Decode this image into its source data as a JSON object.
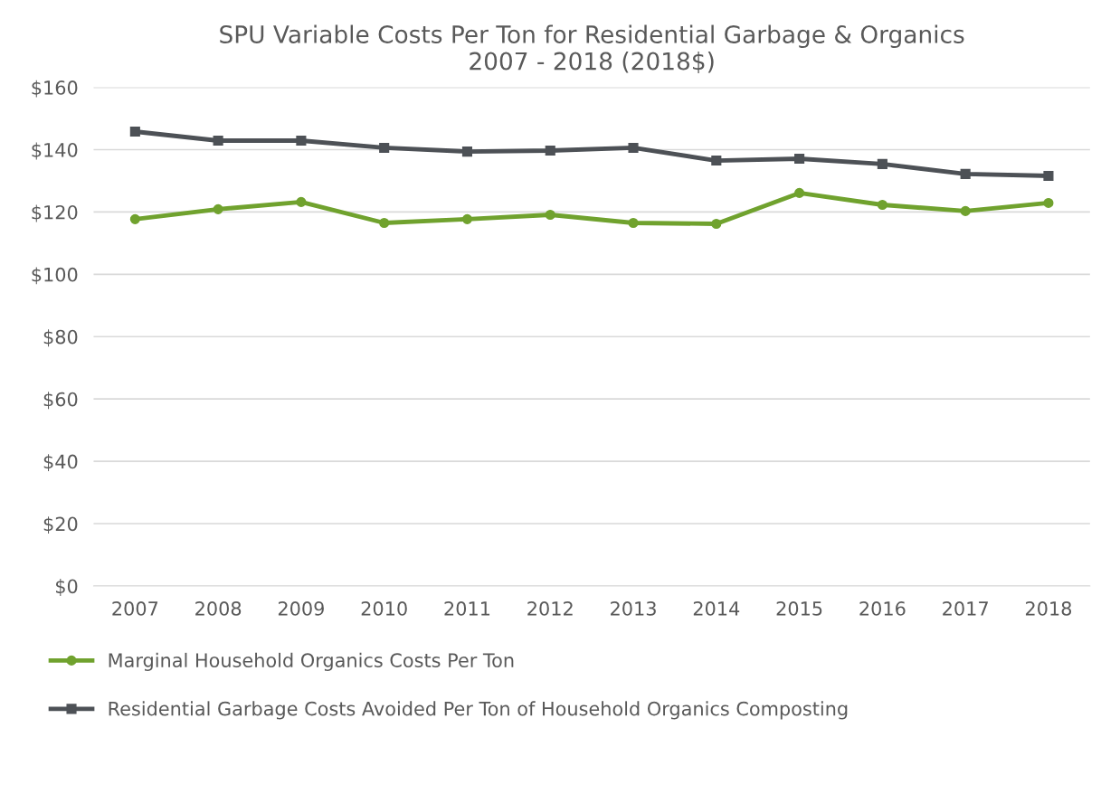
{
  "chart_data": {
    "type": "line",
    "title": "SPU Variable Costs Per Ton for Residential Garbage & Organics\n2007 - 2018 (2018$)",
    "categories": [
      "2007",
      "2008",
      "2009",
      "2010",
      "2011",
      "2012",
      "2013",
      "2014",
      "2015",
      "2016",
      "2017",
      "2018"
    ],
    "series": [
      {
        "name": "Marginal Household Organics Costs Per Ton",
        "color": "#70a22e",
        "marker": "circle",
        "values": [
          117.7,
          120.9,
          123.2,
          116.5,
          117.7,
          119.1,
          116.5,
          116.2,
          126.1,
          122.3,
          120.3,
          122.9
        ]
      },
      {
        "name": "Residential Garbage Costs Avoided Per Ton of Household Organics Composting",
        "color": "#4d5156",
        "marker": "square",
        "values": [
          145.8,
          142.9,
          142.9,
          140.6,
          139.4,
          139.7,
          140.6,
          136.5,
          137.1,
          135.4,
          132.2,
          131.6
        ]
      }
    ],
    "ylim": [
      0,
      160
    ],
    "yticks": [
      {
        "value": 0,
        "label": "$0"
      },
      {
        "value": 20,
        "label": "$20"
      },
      {
        "value": 40,
        "label": "$40"
      },
      {
        "value": 60,
        "label": "$60"
      },
      {
        "value": 80,
        "label": "$80"
      },
      {
        "value": 100,
        "label": "$100"
      },
      {
        "value": 120,
        "label": "$120"
      },
      {
        "value": 140,
        "label": "$140"
      },
      {
        "value": 160,
        "label": "$160"
      }
    ],
    "grid": "y",
    "legend": "bottom"
  }
}
